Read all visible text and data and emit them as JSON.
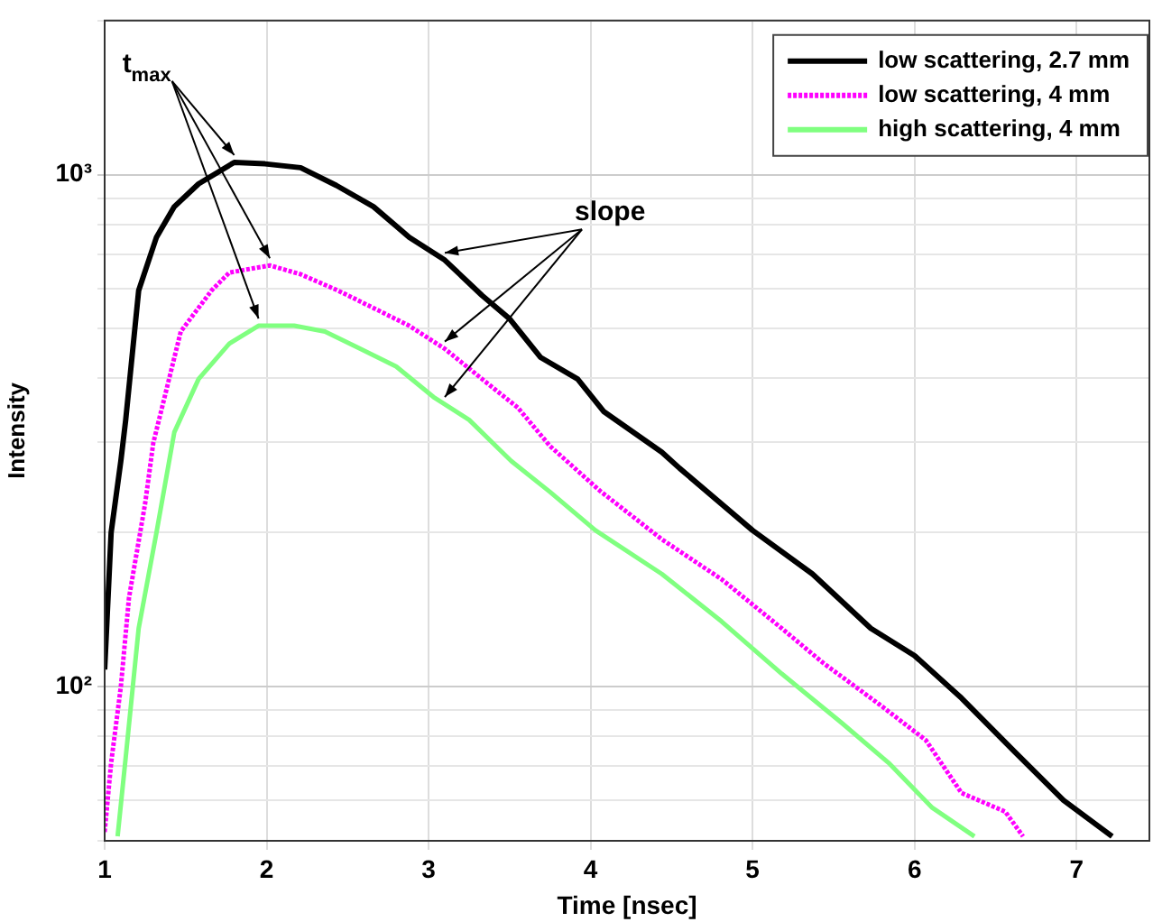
{
  "chart_data": {
    "type": "line",
    "xlabel": "Time [nsec]",
    "ylabel": "Intensity",
    "log": "y",
    "grid": true,
    "legend": "top right",
    "marker": "none",
    "xlim": [
      1,
      7.45
    ],
    "xticks": [
      1,
      2,
      3,
      4,
      5,
      6,
      7
    ],
    "ylim": [
      50,
      2000
    ],
    "yticks": [
      {
        "value": 50,
        "label": null
      },
      {
        "value": 60,
        "label": null
      },
      {
        "value": 70,
        "label": null
      },
      {
        "value": 80,
        "label": null
      },
      {
        "value": 90,
        "label": null
      },
      {
        "value": 100,
        "label": "10²"
      },
      {
        "value": 200,
        "label": null
      },
      {
        "value": 300,
        "label": null
      },
      {
        "value": 400,
        "label": null
      },
      {
        "value": 500,
        "label": null
      },
      {
        "value": 600,
        "label": null
      },
      {
        "value": 700,
        "label": null
      },
      {
        "value": 800,
        "label": null
      },
      {
        "value": 900,
        "label": null
      },
      {
        "value": 1000,
        "label": "10³"
      },
      {
        "value": 2000,
        "label": null
      }
    ],
    "annotations": [
      {
        "text": "t$_{max}$",
        "x": 1.8,
        "y": 1057
      },
      {
        "text": "slope",
        "x": 3.1,
        "y": 681
      }
    ],
    "series": [
      {
        "name": "low scattering, 2.7 mm",
        "color": "#000000",
        "line_style": "solid",
        "x": [
          1.0,
          1.04,
          1.1,
          1.13,
          1.21,
          1.32,
          1.43,
          1.58,
          1.8,
          1.99,
          2.21,
          2.43,
          2.66,
          2.88,
          3.1,
          3.33,
          3.5,
          3.69,
          3.92,
          4.08,
          4.44,
          4.55,
          5.0,
          5.37,
          5.73,
          6.0,
          6.29,
          6.62,
          6.92,
          7.22
        ],
        "values": [
          108,
          200,
          276,
          332,
          594,
          755,
          866,
          960,
          1057,
          1050,
          1032,
          953,
          866,
          755,
          681,
          581,
          523,
          440,
          399,
          345,
          287,
          267,
          202,
          166,
          130,
          115,
          95,
          74.5,
          60,
          51
        ]
      },
      {
        "name": "low scattering, 4 mm",
        "color": "#ff00ff",
        "line_style": "dotted",
        "x": [
          1.0,
          1.04,
          1.1,
          1.15,
          1.25,
          1.3,
          1.47,
          1.66,
          1.77,
          2.02,
          2.21,
          2.44,
          2.66,
          2.88,
          3.1,
          3.33,
          3.55,
          3.75,
          4.06,
          4.44,
          4.81,
          5.18,
          5.44,
          5.78,
          6.07,
          6.29,
          6.56,
          6.67
        ],
        "values": [
          52,
          71,
          100,
          149,
          228,
          299,
          494,
          594,
          644,
          665,
          639,
          594,
          549,
          507,
          457,
          399,
          351,
          295,
          241,
          194,
          162,
          130,
          111,
          92.5,
          78.6,
          62,
          57,
          51
        ]
      },
      {
        "name": "high scattering, 4 mm",
        "color": "#80ff80",
        "line_style": "solid",
        "x": [
          1.08,
          1.13,
          1.21,
          1.32,
          1.43,
          1.58,
          1.77,
          1.95,
          2.17,
          2.36,
          2.58,
          2.8,
          3.03,
          3.25,
          3.44,
          3.51,
          3.75,
          4.03,
          4.44,
          4.81,
          5.18,
          5.55,
          5.84,
          6.11,
          6.37
        ],
        "values": [
          51,
          72.8,
          130,
          200,
          314,
          399,
          468,
          507,
          507,
          494,
          457,
          422,
          368,
          332,
          290,
          276,
          240,
          202,
          166,
          134,
          106,
          85,
          71,
          58,
          51
        ]
      }
    ]
  }
}
